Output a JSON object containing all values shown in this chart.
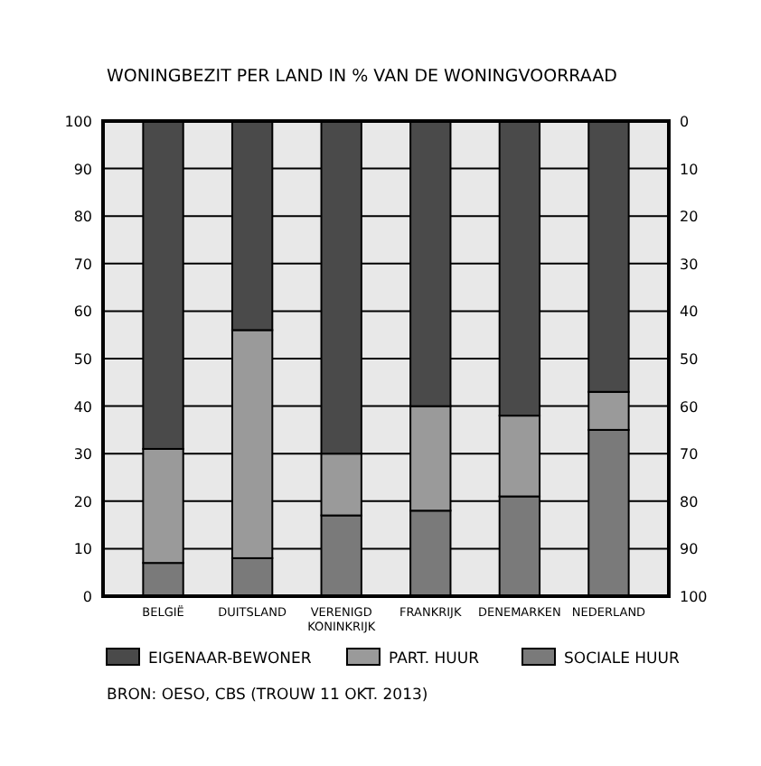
{
  "chart_data": {
    "type": "bar",
    "stacked": true,
    "title": "WONINGBEZIT PER LAND IN % VAN DE WONINGVOORRAAD",
    "categories": [
      "BELGIË",
      "DUITSLAND",
      "VERENIGD KONINKRIJK",
      "FRANKRIJK",
      "DENEMARKEN",
      "NEDERLAND"
    ],
    "series": [
      {
        "name": "SOCIALE HUUR",
        "color": "#7a7a7a",
        "values": [
          7,
          8,
          17,
          18,
          21,
          35
        ]
      },
      {
        "name": "PART. HUUR",
        "color": "#9a9a9a",
        "values": [
          24,
          48,
          13,
          22,
          17,
          8
        ]
      },
      {
        "name": "EIGENAAR-BEWONER",
        "color": "#4a4a4a",
        "values": [
          69,
          44,
          70,
          60,
          62,
          57
        ]
      }
    ],
    "ylim": [
      0,
      100
    ],
    "yticks": [
      0,
      10,
      20,
      30,
      40,
      50,
      60,
      70,
      80,
      90,
      100
    ],
    "y2lim": [
      100,
      0
    ],
    "y2ticks": [
      0,
      10,
      20,
      30,
      40,
      50,
      60,
      70,
      80,
      90,
      100
    ],
    "grid": "y",
    "legend": "bottom",
    "annotations": [
      "BRON: OESO, CBS (TROUW 11 OKT. 2013)"
    ]
  }
}
